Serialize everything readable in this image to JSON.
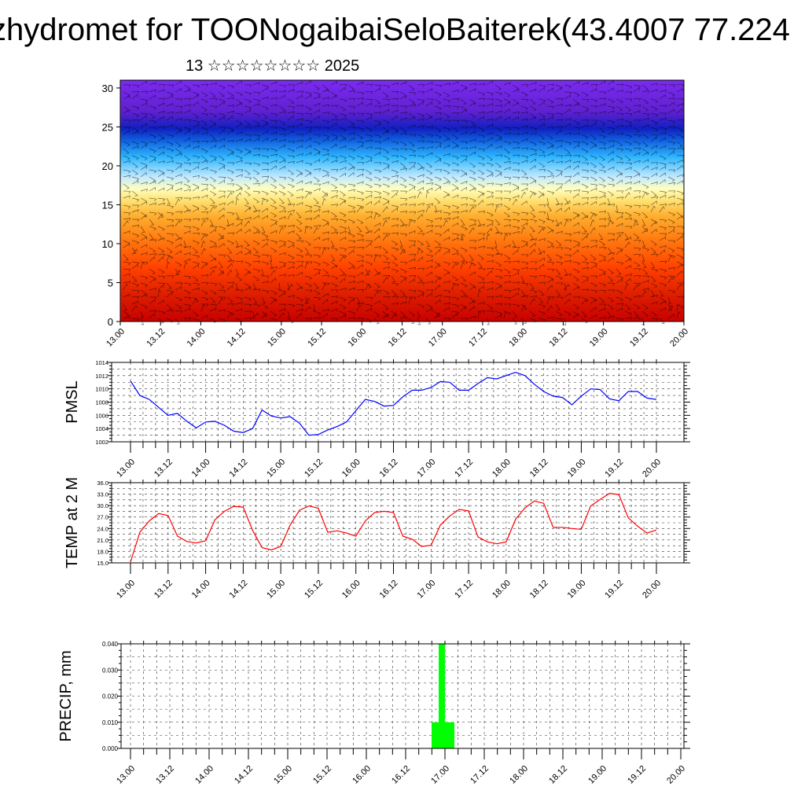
{
  "header": {
    "title": "zhydromet for TOONogaibaiSeloBaiterek(43.4007 77.224",
    "subtitle": "13 ☆☆☆☆☆☆☆☆ 2025"
  },
  "chart_data": [
    {
      "type": "heatmap",
      "title": "",
      "xlabel": "",
      "ylabel": "",
      "x_tick_labels": [
        "13.00",
        "13.12",
        "14.00",
        "14.12",
        "15.00",
        "15.12",
        "16.00",
        "16.12",
        "17.00",
        "17.12",
        "18.00",
        "18.12",
        "19.00",
        "19.12",
        "20.00"
      ],
      "y_ticks": [
        0,
        5,
        10,
        15,
        20,
        25,
        30
      ],
      "ylim": [
        0,
        31
      ],
      "colormap": [
        "#c80000",
        "#e02000",
        "#ff4000",
        "#ff7a10",
        "#ffb030",
        "#ffe070",
        "#ffffc0",
        "#c0e8ff",
        "#30b8ff",
        "#1060e0",
        "#1020c0",
        "#6020d0",
        "#7b2bf0"
      ],
      "overlay": "wind barbs"
    },
    {
      "type": "line",
      "ylabel": "PMSL",
      "x_tick_labels": [
        "13.00",
        "13.12",
        "14.00",
        "14.12",
        "15.00",
        "15.12",
        "16.00",
        "16.12",
        "17.00",
        "17.12",
        "18.00",
        "18.12",
        "19.00",
        "19.12",
        "20.00"
      ],
      "ylim": [
        1002,
        1014
      ],
      "y_ticks": [
        1002,
        1004,
        1006,
        1008,
        1010,
        1012,
        1014
      ],
      "color": "#0000ff",
      "values": [
        1011.2,
        1009.0,
        1008.4,
        1007.2,
        1006.0,
        1006.3,
        1005.1,
        1004.1,
        1005.0,
        1005.1,
        1004.5,
        1003.6,
        1003.4,
        1004.0,
        1006.8,
        1005.9,
        1005.6,
        1005.8,
        1004.8,
        1003.0,
        1003.1,
        1003.8,
        1004.3,
        1005.0,
        1006.7,
        1008.4,
        1008.1,
        1007.4,
        1007.5,
        1008.8,
        1009.8,
        1009.8,
        1010.2,
        1011.1,
        1011.0,
        1009.8,
        1009.8,
        1010.8,
        1011.7,
        1011.5,
        1012.0,
        1012.5,
        1012.0,
        1010.7,
        1009.6,
        1008.9,
        1008.7,
        1007.6,
        1008.9,
        1010.0,
        1009.9,
        1008.5,
        1008.2,
        1009.6,
        1009.6,
        1008.6,
        1008.4
      ]
    },
    {
      "type": "line",
      "ylabel": "TEMP at 2 M",
      "x_tick_labels": [
        "13.00",
        "13.12",
        "14.00",
        "14.12",
        "15.00",
        "15.12",
        "16.00",
        "16.12",
        "17.00",
        "17.12",
        "18.00",
        "18.12",
        "19.00",
        "19.12",
        "20.00"
      ],
      "ylim": [
        15,
        36
      ],
      "y_ticks": [
        "15.0",
        "18.0",
        "21.0",
        "24.0",
        "27.0",
        "30.0",
        "33.0",
        "36.0"
      ],
      "color": "#ff0000",
      "values": [
        15.2,
        23.0,
        26.0,
        27.9,
        27.4,
        22.0,
        20.6,
        20.2,
        20.8,
        26.3,
        28.5,
        29.8,
        29.6,
        23.5,
        19.0,
        18.4,
        19.3,
        24.9,
        28.8,
        29.9,
        29.3,
        23.0,
        23.4,
        22.8,
        22.0,
        26.0,
        28.2,
        28.5,
        28.2,
        22.0,
        21.2,
        19.3,
        19.6,
        24.9,
        27.3,
        29.0,
        28.6,
        21.8,
        20.5,
        20.0,
        20.5,
        26.4,
        29.4,
        31.2,
        30.6,
        24.3,
        24.3,
        24.0,
        23.8,
        29.9,
        31.6,
        33.2,
        32.9,
        26.8,
        24.6,
        22.8,
        23.6
      ]
    },
    {
      "type": "bar",
      "ylabel": "PRECIP, mm",
      "x_tick_labels": [
        "13.00",
        "13.12",
        "14.00",
        "14.12",
        "15.00",
        "15.12",
        "16.00",
        "16.12",
        "17.00",
        "17.12",
        "18.00",
        "18.12",
        "19.00",
        "19.12",
        "20.00"
      ],
      "ylim": [
        0,
        0.04
      ],
      "y_ticks": [
        "0.000",
        "0.010",
        "0.020",
        "0.030",
        "0.040"
      ],
      "color": "#00ff00",
      "bars": [
        {
          "start": 3.83,
          "end": 3.92,
          "value": 0.01
        },
        {
          "start": 3.92,
          "end": 4.0,
          "value": 0.04
        },
        {
          "start": 4.0,
          "end": 4.12,
          "value": 0.01
        }
      ]
    }
  ]
}
